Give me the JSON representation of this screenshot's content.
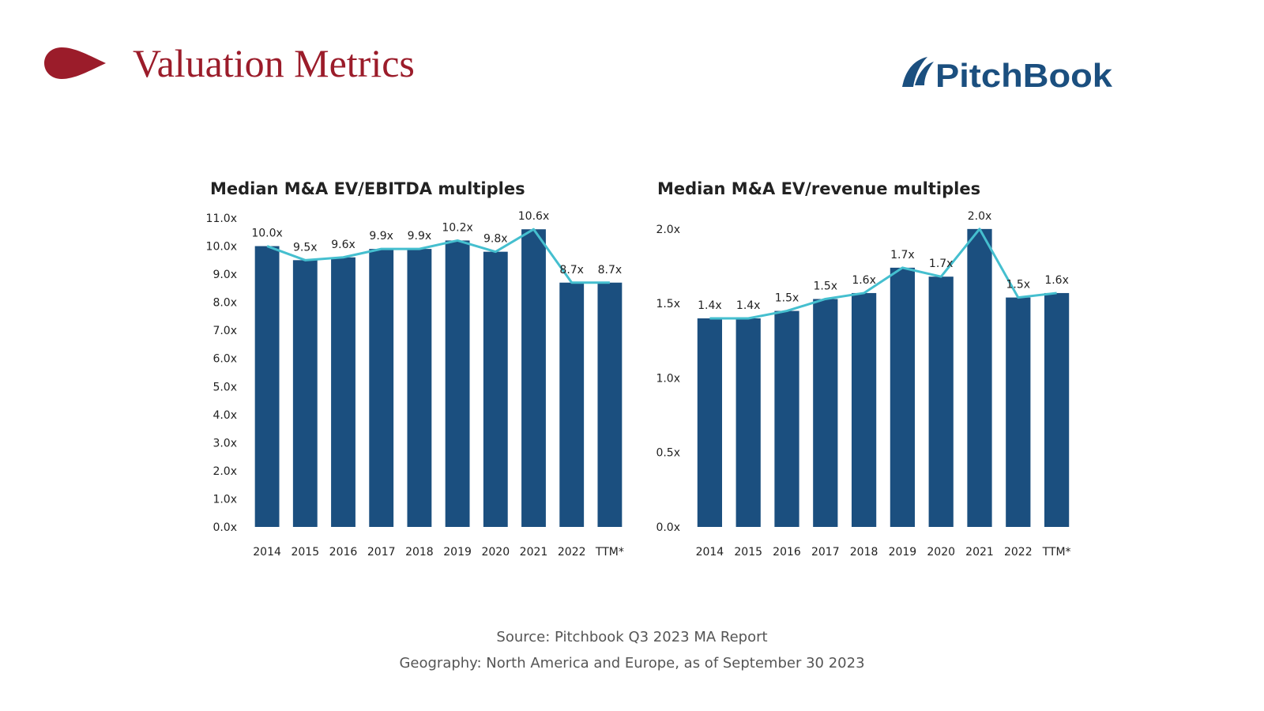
{
  "page": {
    "title": "Valuation Metrics",
    "logo_text": "PitchBook",
    "source": "Source: Pitchbook Q3 2023 MA Report",
    "geography": "Geography: North America and Europe, as of September 30 2023"
  },
  "colors": {
    "title": "#9b1c2a",
    "bar": "#1b4f7f",
    "line": "#45bfcf",
    "logo": "#1b4f7f"
  },
  "icons": {
    "title_marker": "red-teardrop-arrow-icon",
    "logo_mark": "pitchbook-swoosh-icon"
  },
  "chart_data": [
    {
      "type": "bar",
      "title": "Median M&A EV/EBITDA multiples",
      "categories": [
        "2014",
        "2015",
        "2016",
        "2017",
        "2018",
        "2019",
        "2020",
        "2021",
        "2022",
        "TTM*"
      ],
      "values": [
        10.0,
        9.5,
        9.6,
        9.9,
        9.9,
        10.2,
        9.8,
        10.6,
        8.7,
        8.7
      ],
      "data_labels": [
        "10.0x",
        "9.5x",
        "9.6x",
        "9.9x",
        "9.9x",
        "10.2x",
        "9.8x",
        "10.6x",
        "8.7x",
        "8.7x"
      ],
      "line_overlay": true,
      "ylim": [
        0,
        11
      ],
      "yticks": [
        0,
        1,
        2,
        3,
        4,
        5,
        6,
        7,
        8,
        9,
        10,
        11
      ],
      "ytick_labels": [
        "0.0x",
        "1.0x",
        "2.0x",
        "3.0x",
        "4.0x",
        "5.0x",
        "6.0x",
        "7.0x",
        "8.0x",
        "9.0x",
        "10.0x",
        "11.0x"
      ],
      "xlabel": "",
      "ylabel": "",
      "grid": false,
      "legend": "none"
    },
    {
      "type": "bar",
      "title": "Median M&A EV/revenue multiples",
      "categories": [
        "2014",
        "2015",
        "2016",
        "2017",
        "2018",
        "2019",
        "2020",
        "2021",
        "2022",
        "TTM*"
      ],
      "values": [
        1.4,
        1.4,
        1.45,
        1.53,
        1.57,
        1.74,
        1.68,
        2.0,
        1.54,
        1.57
      ],
      "data_labels": [
        "1.4x",
        "1.4x",
        "1.5x",
        "1.5x",
        "1.6x",
        "1.7x",
        "1.7x",
        "2.0x",
        "1.5x",
        "1.6x"
      ],
      "line_overlay": true,
      "ylim": [
        0,
        2.1
      ],
      "yticks": [
        0,
        0.5,
        1.0,
        1.5,
        2.0
      ],
      "ytick_labels": [
        "0.0x",
        "0.5x",
        "1.0x",
        "1.5x",
        "2.0x"
      ],
      "xlabel": "",
      "ylabel": "",
      "grid": false,
      "legend": "none"
    }
  ]
}
